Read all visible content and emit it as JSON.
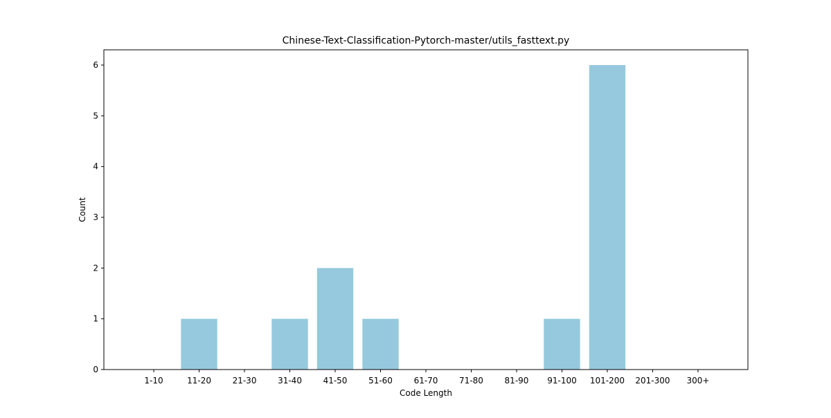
{
  "chart_data": {
    "type": "bar",
    "title": "Chinese-Text-Classification-Pytorch-master/utils_fasttext.py",
    "xlabel": "Code Length",
    "ylabel": "Count",
    "categories": [
      "1-10",
      "11-20",
      "21-30",
      "31-40",
      "41-50",
      "51-60",
      "61-70",
      "71-80",
      "81-90",
      "91-100",
      "101-200",
      "201-300",
      "300+"
    ],
    "values": [
      0,
      1,
      0,
      1,
      2,
      1,
      0,
      0,
      0,
      1,
      6,
      0,
      0
    ],
    "yticks": [
      0,
      1,
      2,
      3,
      4,
      5,
      6
    ],
    "ylim": [
      0,
      6.3
    ],
    "grid": false,
    "colors": {
      "bar": "#96c9dd",
      "axis": "#000000",
      "background": "#ffffff"
    }
  }
}
